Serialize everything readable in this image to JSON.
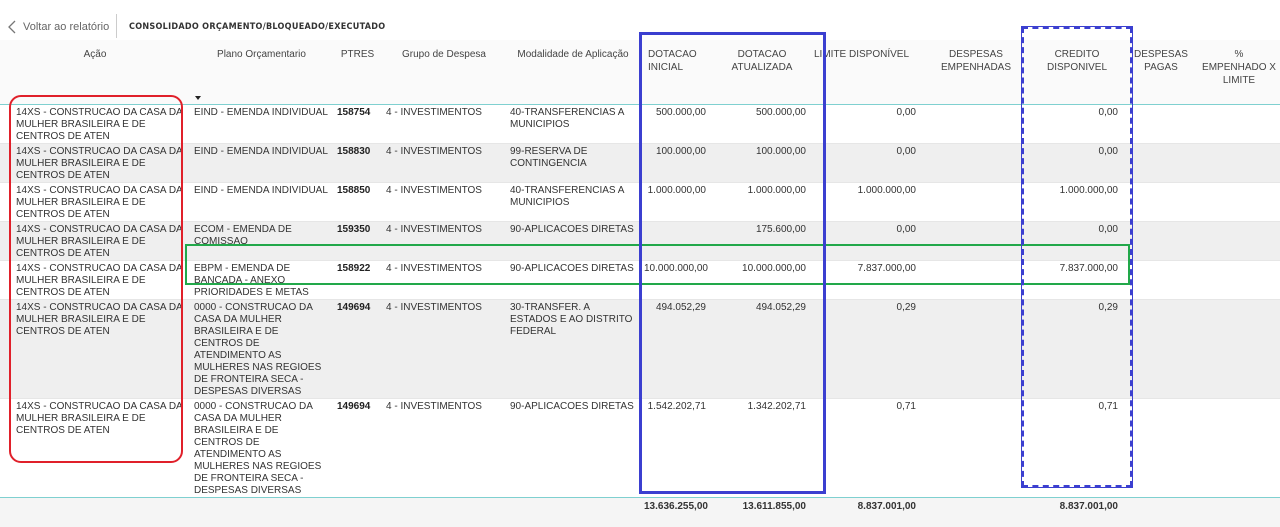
{
  "topbar": {
    "back_label": "Voltar ao relatório",
    "title": "CONSOLIDADO ORÇAMENTO/BLOQUEADO/EXECUTADO"
  },
  "columns": [
    "Ação",
    "Plano Orçamentario",
    "PTRES",
    "Grupo de Despesa",
    "Modalidade de Aplicação",
    "DOTACAO INICIAL",
    "DOTACAO ATUALIZADA",
    "LIMITE DISPONÍVEL",
    "DESPESAS EMPENHADAS",
    "CREDITO DISPONIVEL",
    "DESPESAS PAGAS",
    "% EMPENHADO X LIMITE"
  ],
  "sort_indicator": "sorted-descending on Plano Orçamentario",
  "rows": [
    {
      "acao": "14XS - CONSTRUCAO DA CASA DA MULHER BRASILEIRA E DE CENTROS DE ATEN",
      "plano": "EIND - EMENDA INDIVIDUAL",
      "ptres": "158754",
      "grupo": "4 - INVESTIMENTOS",
      "modalidade": "40-TRANSFERENCIAS A MUNICIPIOS",
      "dot_inicial": "500.000,00",
      "dot_atualizada": "500.000,00",
      "limite": "0,00",
      "empenhadas": "",
      "credito": "0,00",
      "pagas": "",
      "pct": ""
    },
    {
      "acao": "14XS - CONSTRUCAO DA CASA DA MULHER BRASILEIRA E DE CENTROS DE ATEN",
      "plano": "EIND - EMENDA INDIVIDUAL",
      "ptres": "158830",
      "grupo": "4 - INVESTIMENTOS",
      "modalidade": "99-RESERVA DE CONTINGENCIA",
      "dot_inicial": "100.000,00",
      "dot_atualizada": "100.000,00",
      "limite": "0,00",
      "empenhadas": "",
      "credito": "0,00",
      "pagas": "",
      "pct": ""
    },
    {
      "acao": "14XS - CONSTRUCAO DA CASA DA MULHER BRASILEIRA E DE CENTROS DE ATEN",
      "plano": "EIND - EMENDA INDIVIDUAL",
      "ptres": "158850",
      "grupo": "4 - INVESTIMENTOS",
      "modalidade": "40-TRANSFERENCIAS A MUNICIPIOS",
      "dot_inicial": "1.000.000,00",
      "dot_atualizada": "1.000.000,00",
      "limite": "1.000.000,00",
      "empenhadas": "",
      "credito": "1.000.000,00",
      "pagas": "",
      "pct": ""
    },
    {
      "acao": "14XS - CONSTRUCAO DA CASA DA MULHER BRASILEIRA E DE CENTROS DE ATEN",
      "plano": "ECOM - EMENDA DE COMISSAO",
      "ptres": "159350",
      "grupo": "4 - INVESTIMENTOS",
      "modalidade": "90-APLICACOES DIRETAS",
      "dot_inicial": "",
      "dot_atualizada": "175.600,00",
      "limite": "0,00",
      "empenhadas": "",
      "credito": "0,00",
      "pagas": "",
      "pct": ""
    },
    {
      "acao": "14XS - CONSTRUCAO DA CASA DA MULHER BRASILEIRA E DE CENTROS DE ATEN",
      "plano": "EBPM - EMENDA DE BANCADA - ANEXO PRIORIDADES E METAS",
      "ptres": "158922",
      "grupo": "4 - INVESTIMENTOS",
      "modalidade": "90-APLICACOES DIRETAS",
      "dot_inicial": "10.000.000,00",
      "dot_atualizada": "10.000.000,00",
      "limite": "7.837.000,00",
      "empenhadas": "",
      "credito": "7.837.000,00",
      "pagas": "",
      "pct": ""
    },
    {
      "acao": "14XS - CONSTRUCAO DA CASA DA MULHER BRASILEIRA E DE CENTROS DE ATEN",
      "plano": "0000 - CONSTRUCAO DA CASA DA MULHER BRASILEIRA E DE CENTROS DE ATENDIMENTO AS MULHERES NAS REGIOES DE FRONTEIRA SECA - DESPESAS DIVERSAS",
      "ptres": "149694",
      "grupo": "4 - INVESTIMENTOS",
      "modalidade": "30-TRANSFER. A ESTADOS E AO DISTRITO FEDERAL",
      "dot_inicial": "494.052,29",
      "dot_atualizada": "494.052,29",
      "limite": "0,29",
      "empenhadas": "",
      "credito": "0,29",
      "pagas": "",
      "pct": ""
    },
    {
      "acao": "14XS - CONSTRUCAO DA CASA DA MULHER BRASILEIRA E DE CENTROS DE ATEN",
      "plano": "0000 - CONSTRUCAO DA CASA DA MULHER BRASILEIRA E DE CENTROS DE ATENDIMENTO AS MULHERES NAS REGIOES DE FRONTEIRA SECA - DESPESAS DIVERSAS",
      "ptres": "149694",
      "grupo": "4 - INVESTIMENTOS",
      "modalidade": "90-APLICACOES DIRETAS",
      "dot_inicial": "1.542.202,71",
      "dot_atualizada": "1.342.202,71",
      "limite": "0,71",
      "empenhadas": "",
      "credito": "0,71",
      "pagas": "",
      "pct": ""
    }
  ],
  "totals": {
    "dot_inicial": "13.636.255,00",
    "dot_atualizada": "13.611.855,00",
    "limite": "8.837.001,00",
    "credito": "8.837.001,00"
  },
  "highlight_colors": {
    "red": "#e0202a",
    "green": "#22a84a",
    "blue": "#3b3fd0"
  }
}
